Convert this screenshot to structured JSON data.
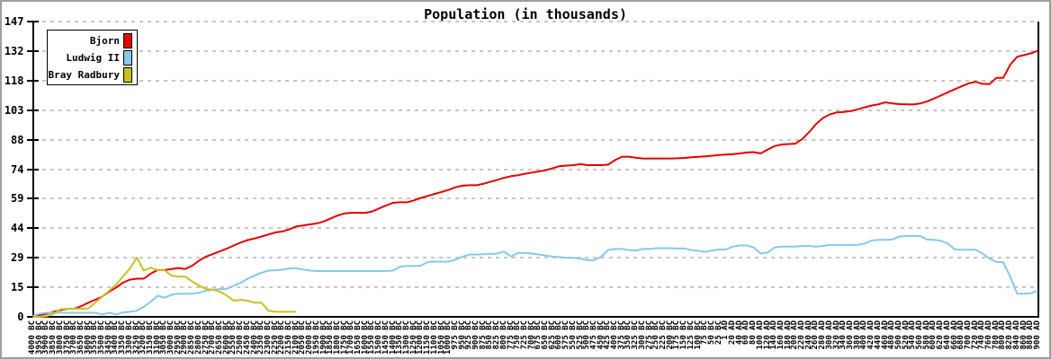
{
  "chart_data": {
    "type": "line",
    "title": "Population (in thousands)",
    "ylim": [
      0,
      147
    ],
    "y_tick_labels": [
      "0",
      "15",
      "29",
      "44",
      "59",
      "74",
      "88",
      "103",
      "118",
      "132",
      "147"
    ],
    "grid": "horizontal-dashed",
    "legend_position": "top-left",
    "categories": [
      "4000 BC",
      "3950 BC",
      "3900 BC",
      "3850 BC",
      "3800 BC",
      "3750 BC",
      "3700 BC",
      "3650 BC",
      "3600 BC",
      "3550 BC",
      "3500 BC",
      "3450 BC",
      "3400 BC",
      "3350 BC",
      "3300 BC",
      "3250 BC",
      "3200 BC",
      "3150 BC",
      "3100 BC",
      "3050 BC",
      "3000 BC",
      "2950 BC",
      "2900 BC",
      "2850 BC",
      "2800 BC",
      "2750 BC",
      "2700 BC",
      "2650 BC",
      "2600 BC",
      "2550 BC",
      "2500 BC",
      "2450 BC",
      "2400 BC",
      "2350 BC",
      "2300 BC",
      "2250 BC",
      "2200 BC",
      "2150 BC",
      "2100 BC",
      "2050 BC",
      "2000 BC",
      "1950 BC",
      "1900 BC",
      "1850 BC",
      "1800 BC",
      "1750 BC",
      "1700 BC",
      "1650 BC",
      "1600 BC",
      "1550 BC",
      "1500 BC",
      "1450 BC",
      "1400 BC",
      "1350 BC",
      "1300 BC",
      "1250 BC",
      "1200 BC",
      "1150 BC",
      "1100 BC",
      "1050 BC",
      "1000 BC",
      "975 BC",
      "950 BC",
      "925 BC",
      "900 BC",
      "875 BC",
      "850 BC",
      "825 BC",
      "800 BC",
      "775 BC",
      "750 BC",
      "725 BC",
      "700 BC",
      "675 BC",
      "650 BC",
      "625 BC",
      "600 BC",
      "575 BC",
      "550 BC",
      "525 BC",
      "500 BC",
      "475 BC",
      "450 BC",
      "425 BC",
      "400 BC",
      "375 BC",
      "350 BC",
      "325 BC",
      "300 BC",
      "275 BC",
      "250 BC",
      "225 BC",
      "200 BC",
      "175 BC",
      "150 BC",
      "125 BC",
      "100 BC",
      "75 BC",
      "50 BC",
      "25 BC",
      "1 AD",
      "20 AD",
      "40 AD",
      "60 AD",
      "80 AD",
      "100 AD",
      "120 AD",
      "140 AD",
      "160 AD",
      "180 AD",
      "200 AD",
      "220 AD",
      "240 AD",
      "260 AD",
      "280 AD",
      "300 AD",
      "320 AD",
      "340 AD",
      "360 AD",
      "380 AD",
      "400 AD",
      "420 AD",
      "440 AD",
      "460 AD",
      "480 AD",
      "500 AD",
      "520 AD",
      "540 AD",
      "560 AD",
      "580 AD",
      "600 AD",
      "620 AD",
      "640 AD",
      "660 AD",
      "680 AD",
      "700 AD",
      "720 AD",
      "740 AD",
      "760 AD",
      "780 AD",
      "800 AD",
      "820 AD",
      "840 AD",
      "860 AD",
      "880 AD",
      "900 AD"
    ],
    "series": [
      {
        "name": "Bjorn",
        "color": "#e60000",
        "values": [
          0,
          0.8,
          1.5,
          2.5,
          3.3,
          4,
          4,
          5.3,
          7,
          8.5,
          10,
          12.5,
          14.5,
          17,
          18.5,
          19,
          19,
          21.5,
          23.3,
          23.3,
          23.8,
          24.3,
          23.8,
          25.5,
          28,
          30,
          31.3,
          32.6,
          34,
          35.5,
          37,
          38.2,
          39,
          40,
          41,
          42,
          42.5,
          43.5,
          45,
          45.5,
          46,
          46.5,
          47.5,
          49,
          50.5,
          51.5,
          51.8,
          51.8,
          51.8,
          52.5,
          54,
          55.5,
          56.8,
          57,
          57,
          58,
          59.2,
          60.2,
          61.2,
          62.2,
          63.2,
          64.5,
          65.3,
          65.5,
          65.5,
          66.2,
          67.2,
          68.2,
          69.2,
          70,
          70.5,
          71.2,
          71.8,
          72.4,
          73,
          74,
          75,
          75.3,
          75.5,
          76,
          75.5,
          75.5,
          75.5,
          75.8,
          78,
          79.7,
          79.7,
          79.2,
          78.8,
          78.8,
          78.8,
          78.8,
          78.8,
          78.9,
          79.1,
          79.4,
          79.6,
          79.9,
          80.2,
          80.5,
          80.8,
          81,
          81.3,
          81.8,
          82,
          81.3,
          83.3,
          85,
          85.8,
          86,
          86.2,
          88.5,
          92,
          96,
          99,
          100.8,
          101.8,
          102,
          102.4,
          103.3,
          104.3,
          105.2,
          105.8,
          106.8,
          106.2,
          105.9,
          105.8,
          105.7,
          106.2,
          107.2,
          108.6,
          110.2,
          111.8,
          113.3,
          114.8,
          116.2,
          117,
          116,
          115.8,
          119,
          119,
          125.5,
          129.5,
          130.3,
          131.2,
          132.5
        ]
      },
      {
        "name": "Ludwig II",
        "color": "#85c9ec",
        "values": [
          0.5,
          1.5,
          2,
          2,
          2,
          2,
          2,
          2,
          2,
          2,
          1.2,
          2,
          1.2,
          2.2,
          2.5,
          3,
          5,
          7.5,
          10.5,
          9.5,
          11,
          11.5,
          11.5,
          11.5,
          12,
          13,
          13.5,
          13.8,
          14,
          15.5,
          17,
          19,
          20.5,
          22,
          23,
          23.2,
          23.5,
          24,
          24.2,
          23.5,
          23,
          22.8,
          22.8,
          22.8,
          22.8,
          22.8,
          22.8,
          22.8,
          22.8,
          22.8,
          22.8,
          22.8,
          23,
          25,
          25.3,
          25.3,
          25.5,
          27.3,
          27.5,
          27.5,
          27.5,
          28.5,
          30,
          31,
          31,
          31.2,
          31.3,
          31.5,
          32.5,
          30,
          31.8,
          31.8,
          31.5,
          31,
          30.5,
          30,
          29.7,
          29.4,
          29.4,
          29,
          28.2,
          28.2,
          30,
          33.3,
          33.8,
          33.8,
          33.2,
          33,
          33.8,
          33.8,
          34.2,
          34.2,
          34.2,
          34,
          34,
          33.2,
          32.9,
          32.3,
          33,
          33.5,
          33.5,
          35,
          35.5,
          35.5,
          34.5,
          31.5,
          32,
          34.5,
          35,
          35,
          35,
          35.2,
          35.3,
          34.9,
          35.3,
          35.8,
          35.8,
          35.8,
          35.8,
          35.8,
          36.5,
          38,
          38.3,
          38.3,
          38.5,
          40,
          40.2,
          40.3,
          40.2,
          38.5,
          38.3,
          37.9,
          36.4,
          33.5,
          33.4,
          33.4,
          33.4,
          31.5,
          29,
          27.3,
          27.1,
          20,
          11.5,
          11.5,
          11.8,
          13
        ]
      },
      {
        "name": "Bray Radbury",
        "color": "#c9c121",
        "values": [
          0,
          0,
          0.3,
          1.5,
          3.8,
          4,
          4,
          4,
          4.2,
          7,
          10,
          13,
          16,
          20,
          24,
          29.5,
          23,
          24.5,
          23.2,
          23.2,
          20.5,
          20,
          20,
          17.5,
          15.5,
          13.8,
          13.5,
          12.5,
          10.5,
          8,
          8.5,
          8,
          7,
          7,
          3,
          2.5,
          2.5,
          2.5,
          2.5,
          null,
          null,
          null,
          null,
          null,
          null,
          null,
          null,
          null,
          null,
          null,
          null,
          null,
          null,
          null,
          null,
          null,
          null,
          null,
          null,
          null,
          null,
          null,
          null,
          null,
          null,
          null,
          null,
          null,
          null,
          null,
          null,
          null,
          null,
          null,
          null,
          null,
          null,
          null,
          null,
          null,
          null,
          null,
          null,
          null,
          null,
          null,
          null,
          null,
          null,
          null,
          null,
          null,
          null,
          null,
          null,
          null,
          null,
          null,
          null,
          null,
          null,
          null,
          null,
          null,
          null,
          null,
          null,
          null,
          null,
          null,
          null,
          null,
          null,
          null,
          null,
          null,
          null,
          null,
          null,
          null,
          null,
          null,
          null,
          null,
          null,
          null,
          null,
          null,
          null,
          null,
          null,
          null,
          null,
          null,
          null,
          null,
          null,
          null,
          null,
          null,
          null,
          null
        ]
      }
    ]
  },
  "frame": {
    "background": "#ffffff",
    "border_color": "#9e9e9e",
    "gridline_color": "#c7c7c7"
  }
}
